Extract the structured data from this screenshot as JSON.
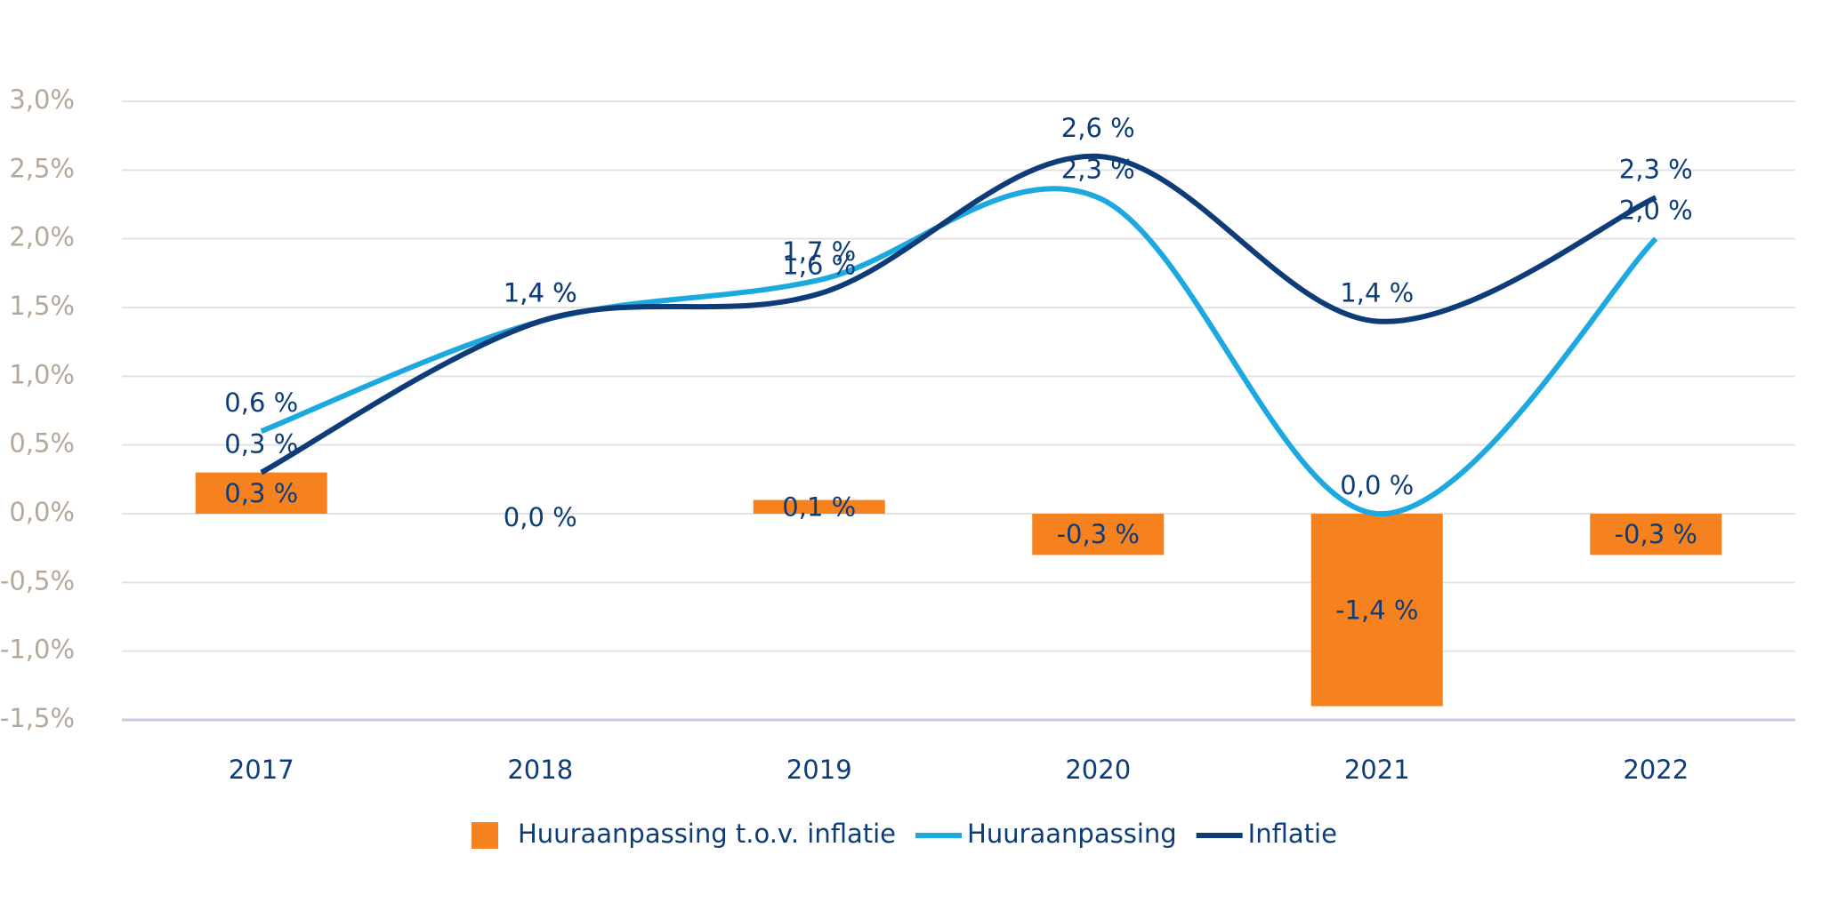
{
  "chart_data": {
    "type": "bar-line",
    "categories": [
      "2017",
      "2018",
      "2019",
      "2020",
      "2021",
      "2022"
    ],
    "ylim": [
      -1.5,
      3.0
    ],
    "yticks": [
      {
        "value": -1.5,
        "label": "-1,5%"
      },
      {
        "value": -1.0,
        "label": "-1,0%"
      },
      {
        "value": -0.5,
        "label": "-0,5%"
      },
      {
        "value": 0.0,
        "label": "0,0%"
      },
      {
        "value": 0.5,
        "label": "0,5%"
      },
      {
        "value": 1.0,
        "label": "1,0%"
      },
      {
        "value": 1.5,
        "label": "1,5%"
      },
      {
        "value": 2.0,
        "label": "2,0%"
      },
      {
        "value": 2.5,
        "label": "2,5%"
      },
      {
        "value": 3.0,
        "label": "3,0%"
      }
    ],
    "grid": true,
    "series": [
      {
        "name": "Huuraanpassing t.o.v. inflatie",
        "type": "bar",
        "color": "#f5821f",
        "values": [
          0.3,
          0.0,
          0.1,
          -0.3,
          -1.4,
          -0.3
        ],
        "value_labels": [
          "0,3 %",
          "0,0 %",
          "0,1 %",
          "-0,3 %",
          "-1,4 %",
          "-0,3 %"
        ]
      },
      {
        "name": "Huuraanpassing",
        "type": "line",
        "color": "#1ba9e0",
        "values": [
          0.6,
          1.4,
          1.7,
          2.3,
          0.0,
          2.0
        ],
        "value_labels": [
          "0,6 %",
          "1,4 %",
          "1,7 %",
          "2,3 %",
          "0,0 %",
          "2,0 %"
        ]
      },
      {
        "name": "Inflatie",
        "type": "line",
        "color": "#0d3c78",
        "values": [
          0.3,
          1.4,
          1.6,
          2.6,
          1.4,
          2.3
        ],
        "value_labels": [
          "0,3 %",
          "1,4 %",
          "1,6 %",
          "2,6 %",
          "1,4 %",
          "2,3 %"
        ]
      }
    ]
  }
}
